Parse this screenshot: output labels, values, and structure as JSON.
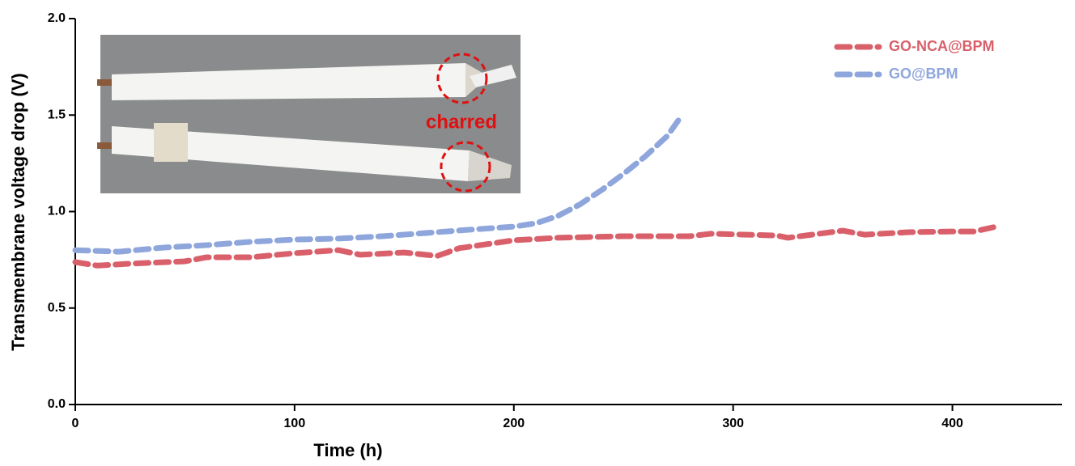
{
  "chart_data": {
    "type": "line",
    "xlabel": "Time (h)",
    "ylabel": "Transmembrane voltage drop (V)",
    "annotation": "charred",
    "xlim": [
      0,
      450
    ],
    "xticks": [
      0,
      100,
      200,
      300,
      400
    ],
    "ylim": [
      0,
      2
    ],
    "yticks": [
      {
        "value": 0,
        "label": "0.0"
      },
      0.5,
      {
        "value": 1,
        "label": "1.0"
      },
      1.5,
      {
        "value": 2,
        "label": "2.0"
      }
    ],
    "series": [
      {
        "name": "GO-NCA@BPM",
        "color": "#d9606a",
        "x": [
          0,
          10,
          25,
          50,
          60,
          80,
          100,
          120,
          130,
          150,
          165,
          175,
          200,
          220,
          250,
          280,
          290,
          320,
          325,
          350,
          360,
          380,
          400,
          410,
          420
        ],
        "values": [
          0.738,
          0.72,
          0.73,
          0.742,
          0.763,
          0.763,
          0.784,
          0.8,
          0.776,
          0.788,
          0.77,
          0.81,
          0.851,
          0.864,
          0.872,
          0.872,
          0.885,
          0.876,
          0.864,
          0.901,
          0.88,
          0.893,
          0.897,
          0.897,
          0.922
        ]
      },
      {
        "name": "GO@BPM",
        "color": "#8fa6dc",
        "x": [
          0,
          20,
          40,
          60,
          80,
          100,
          120,
          140,
          160,
          180,
          200,
          210,
          220,
          230,
          240,
          250,
          260,
          270,
          275
        ],
        "values": [
          0.8,
          0.792,
          0.813,
          0.826,
          0.843,
          0.855,
          0.86,
          0.872,
          0.889,
          0.906,
          0.922,
          0.939,
          0.977,
          1.036,
          1.111,
          1.195,
          1.287,
          1.392,
          1.472
        ]
      }
    ]
  }
}
